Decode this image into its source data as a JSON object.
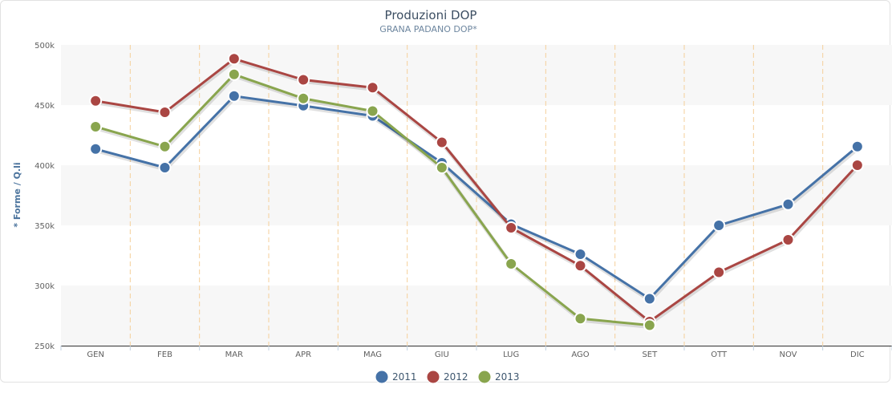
{
  "chart_data": {
    "type": "line",
    "title": "Produzioni DOP",
    "subtitle": "GRANA PADANO DOP*",
    "ylabel": "* Forme / Q.li",
    "xlabel": "",
    "categories": [
      "GEN",
      "FEB",
      "MAR",
      "APR",
      "MAG",
      "GIU",
      "LUG",
      "AGO",
      "SET",
      "OTT",
      "NOV",
      "DIC"
    ],
    "ylim": [
      250000,
      500000
    ],
    "yticks": [
      250000,
      300000,
      350000,
      400000,
      450000,
      500000
    ],
    "ytick_labels": [
      "250k",
      "300k",
      "350k",
      "400k",
      "450k",
      "500k"
    ],
    "grid": "alternating horizontal bands, dashed vertical category separators",
    "legend_position": "bottom-center",
    "series": [
      {
        "name": "2011",
        "color": "#4572a7",
        "values": [
          413500,
          398000,
          457500,
          449500,
          441000,
          402000,
          351000,
          326000,
          289000,
          350000,
          367500,
          415500
        ]
      },
      {
        "name": "2012",
        "color": "#aa4643",
        "values": [
          453500,
          444000,
          488500,
          471000,
          464500,
          419000,
          348000,
          316500,
          270000,
          311000,
          338000,
          400000
        ]
      },
      {
        "name": "2013",
        "color": "#89a54e",
        "values": [
          432000,
          415500,
          475500,
          455500,
          445000,
          398000,
          318000,
          272500,
          267000,
          null,
          null,
          null
        ]
      }
    ]
  }
}
